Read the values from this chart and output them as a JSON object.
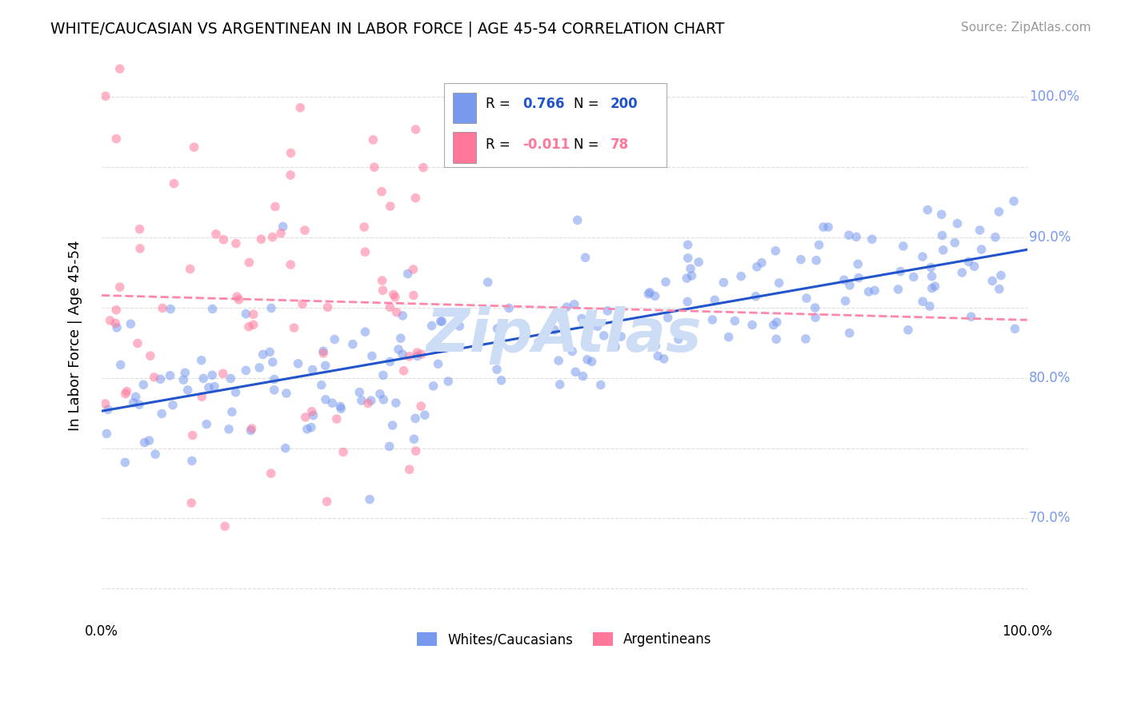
{
  "title": "WHITE/CAUCASIAN VS ARGENTINEAN IN LABOR FORCE | AGE 45-54 CORRELATION CHART",
  "source": "Source: ZipAtlas.com",
  "ylabel": "In Labor Force | Age 45-54",
  "y_ticks": [
    0.65,
    0.7,
    0.75,
    0.8,
    0.85,
    0.9,
    0.95,
    1.0
  ],
  "y_tick_labels": [
    "",
    "70.0%",
    "",
    "80.0%",
    "",
    "90.0%",
    "",
    "100.0%"
  ],
  "xlim": [
    0.0,
    1.0
  ],
  "ylim": [
    0.63,
    1.03
  ],
  "blue_R": 0.766,
  "blue_N": 200,
  "pink_R": -0.011,
  "pink_N": 78,
  "blue_color": "#7799ee",
  "pink_color": "#ff7799",
  "blue_line_color": "#2255cc",
  "pink_line_color": "#ff88aa",
  "watermark": "ZipAtlas",
  "watermark_color": "#ccddf5",
  "legend_label_blue": "Whites/Caucasians",
  "legend_label_pink": "Argentineans",
  "seed": 42
}
